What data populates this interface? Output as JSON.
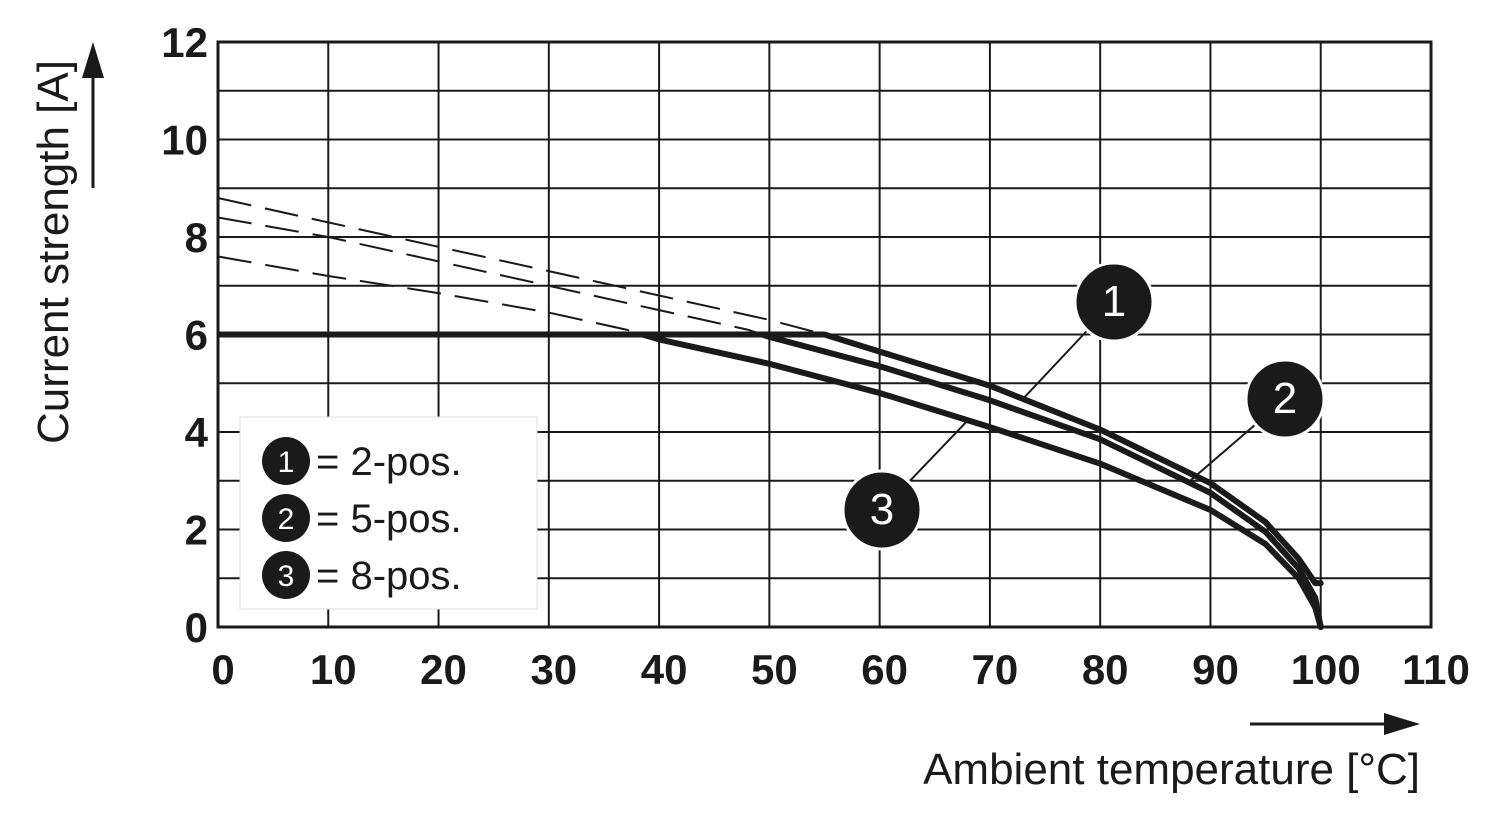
{
  "chart_data": {
    "type": "line",
    "xlabel": "Ambient temperature [°C]",
    "ylabel": "Current strength [A]",
    "xlim": [
      0,
      110
    ],
    "ylim": [
      0,
      12
    ],
    "x_ticks": [
      0,
      10,
      20,
      30,
      40,
      50,
      60,
      70,
      80,
      90,
      100,
      110
    ],
    "y_ticks": [
      0,
      2,
      4,
      6,
      8,
      10,
      12
    ],
    "x_tick_labels": [
      "0",
      "10",
      "20",
      "30",
      "40",
      "50",
      "60",
      "70",
      "80",
      "90",
      "100",
      "110"
    ],
    "y_tick_labels": [
      "0",
      "2",
      "4",
      "6",
      "8",
      "10",
      "12"
    ],
    "grid": true,
    "grid_y_step": 1,
    "grid_x_step": 10,
    "max_current": 6,
    "series": [
      {
        "id": "1",
        "x": [
          0,
          10,
          20,
          30,
          40,
          50,
          55,
          60,
          70,
          80,
          90,
          95,
          98,
          99.5,
          100
        ],
        "y": [
          8.8,
          8.3,
          7.8,
          7.3,
          6.8,
          6.3,
          6.0,
          5.65,
          4.95,
          4.05,
          2.95,
          2.15,
          1.4,
          0.9,
          0.9
        ],
        "limited_at": 6
      },
      {
        "id": "2",
        "x": [
          0,
          10,
          20,
          30,
          40,
          48,
          50,
          60,
          70,
          80,
          90,
          95,
          98,
          99.5,
          100
        ],
        "y": [
          8.4,
          8.0,
          7.5,
          7.0,
          6.5,
          6.1,
          5.95,
          5.35,
          4.65,
          3.85,
          2.75,
          1.95,
          1.2,
          0.6,
          0
        ],
        "limited_at": 6
      },
      {
        "id": "3",
        "x": [
          0,
          10,
          20,
          30,
          37,
          40,
          50,
          60,
          70,
          80,
          90,
          95,
          98,
          99.5,
          100
        ],
        "y": [
          7.6,
          7.2,
          6.85,
          6.45,
          6.1,
          5.9,
          5.4,
          4.8,
          4.1,
          3.35,
          2.4,
          1.7,
          1.0,
          0.4,
          0
        ]
      }
    ],
    "legend": {
      "position": "bottom-left",
      "entries": [
        {
          "badge": "1",
          "text": "= 2-pos."
        },
        {
          "badge": "2",
          "text": "= 5-pos."
        },
        {
          "badge": "3",
          "text": "= 8-pos."
        }
      ]
    },
    "callouts": [
      {
        "label": "1",
        "series": "1",
        "at_x": 73
      },
      {
        "label": "2",
        "series": "2",
        "at_x": 88
      },
      {
        "label": "3",
        "series": "3",
        "at_x": 68
      }
    ]
  },
  "colors": {
    "line": "#1a1a1a",
    "grid": "#1a1a1a",
    "badge_fill": "#1a1a1a",
    "badge_text": "#ffffff",
    "background": "#ffffff"
  }
}
